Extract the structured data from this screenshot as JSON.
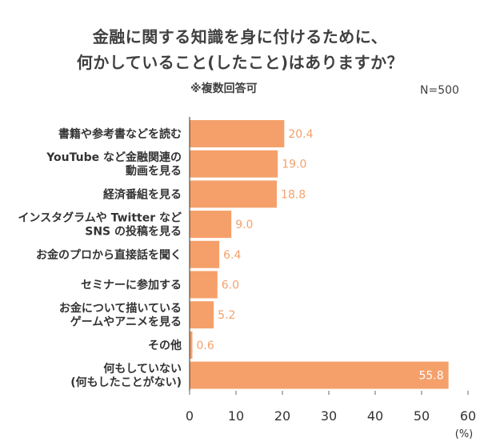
{
  "title_line1": "金融に関する知識を身に付けるために、",
  "title_line2": "何かしていること(したこと)はありますか？",
  "note": "※複数回答可",
  "sample_size": "N=500",
  "chart_data": {
    "type": "bar",
    "orientation": "horizontal",
    "categories": [
      [
        "書籍や参考書などを読む"
      ],
      [
        "YouTube など金融関連の",
        "動画を見る"
      ],
      [
        "経済番組を見る"
      ],
      [
        "インスタグラムや Twitter など",
        "SNS の投稿を見る"
      ],
      [
        "お金のプロから直接話を聞く"
      ],
      [
        "セミナーに参加する"
      ],
      [
        "お金について描いている",
        "ゲームやアニメを見る"
      ],
      [
        "その他"
      ],
      [
        "何もしていない",
        "(何もしたことがない)"
      ]
    ],
    "values": [
      20.4,
      19.0,
      18.8,
      9.0,
      6.4,
      6.0,
      5.2,
      0.6,
      55.8
    ],
    "value_labels": [
      "20.4",
      "19.0",
      "18.8",
      "9.0",
      "6.4",
      "6.0",
      "5.2",
      "0.6",
      "55.8"
    ],
    "xlim": [
      0,
      60
    ],
    "xticks": [
      "0",
      "10",
      "20",
      "30",
      "40",
      "50",
      "60"
    ],
    "xunit": "(%)",
    "bar_color": "#F5A06A",
    "label_color": "#F5A06A"
  }
}
